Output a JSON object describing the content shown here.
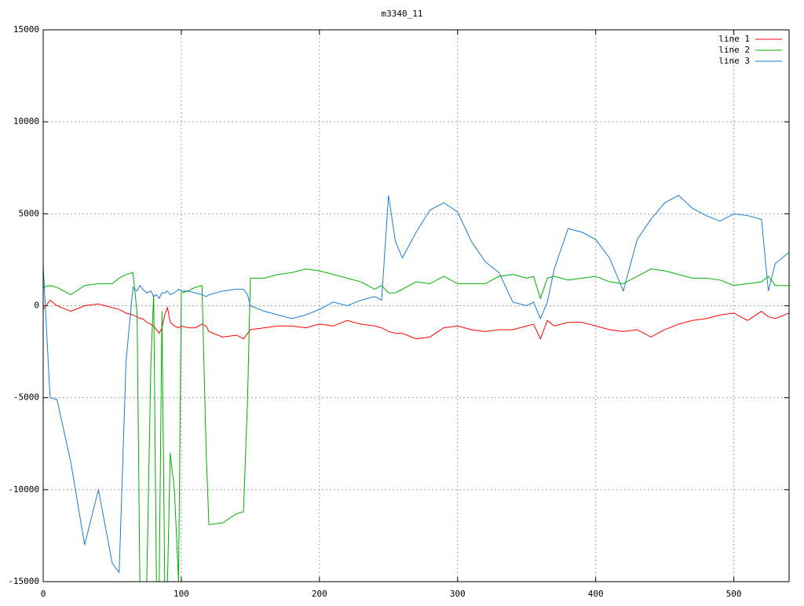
{
  "chart_data": {
    "type": "line",
    "title": "m3340_11",
    "x": [
      0,
      5,
      10,
      20,
      30,
      40,
      50,
      55,
      60,
      65,
      68,
      70,
      72,
      75,
      78,
      80,
      82,
      84,
      86,
      88,
      90,
      92,
      95,
      98,
      100,
      105,
      110,
      115,
      118,
      120,
      130,
      140,
      145,
      148,
      150,
      160,
      170,
      180,
      190,
      200,
      210,
      220,
      230,
      240,
      245,
      250,
      255,
      260,
      270,
      280,
      290,
      300,
      310,
      320,
      330,
      340,
      350,
      355,
      360,
      365,
      370,
      380,
      390,
      400,
      410,
      420,
      430,
      440,
      450,
      460,
      470,
      480,
      490,
      500,
      510,
      520,
      525,
      530,
      540
    ],
    "series": [
      {
        "name": "line 1",
        "color": "#ff0000",
        "values": [
          -200,
          300,
          0,
          -300,
          0,
          100,
          -100,
          -200,
          -400,
          -500,
          -600,
          -700,
          -700,
          -900,
          -1000,
          -1100,
          -1300,
          -1500,
          -1200,
          -500,
          -100,
          -900,
          -1100,
          -1200,
          -1100,
          -1200,
          -1200,
          -1000,
          -1100,
          -1400,
          -1700,
          -1600,
          -1800,
          -1500,
          -1300,
          -1200,
          -1100,
          -1100,
          -1200,
          -1000,
          -1100,
          -800,
          -1000,
          -1100,
          -1200,
          -1400,
          -1500,
          -1500,
          -1800,
          -1700,
          -1200,
          -1100,
          -1300,
          -1400,
          -1300,
          -1300,
          -1100,
          -1000,
          -1800,
          -800,
          -1100,
          -900,
          -900,
          -1100,
          -1300,
          -1400,
          -1300,
          -1700,
          -1300,
          -1000,
          -800,
          -700,
          -500,
          -400,
          -800,
          -300,
          -600,
          -700,
          -400
        ]
      },
      {
        "name": "line 2",
        "color": "#00b000",
        "values": [
          1000,
          1100,
          1000,
          600,
          1100,
          1200,
          1200,
          1500,
          1700,
          1800,
          -400,
          -15000,
          -15000,
          -15000,
          -3000,
          600,
          -15000,
          -15000,
          -300,
          -15000,
          -15000,
          -8000,
          -10000,
          -15000,
          700,
          800,
          1000,
          1100,
          -8000,
          -11900,
          -11800,
          -11300,
          -11200,
          -5000,
          1500,
          1500,
          1700,
          1800,
          2000,
          1900,
          1700,
          1500,
          1300,
          900,
          1100,
          700,
          700,
          900,
          1300,
          1200,
          1600,
          1200,
          1200,
          1200,
          1600,
          1700,
          1500,
          1600,
          400,
          1500,
          1600,
          1400,
          1500,
          1600,
          1300,
          1200,
          1600,
          2000,
          1900,
          1700,
          1500,
          1500,
          1400,
          1100,
          1200,
          1300,
          1600,
          1100,
          1100
        ]
      },
      {
        "name": "line 3",
        "color": "#1c7cd5",
        "values": [
          2200,
          -5000,
          -5100,
          -8500,
          -13000,
          -10000,
          -14000,
          -14500,
          -3000,
          1000,
          800,
          1100,
          900,
          700,
          800,
          500,
          600,
          400,
          700,
          700,
          800,
          600,
          700,
          900,
          800,
          800,
          700,
          600,
          500,
          600,
          800,
          900,
          900,
          600,
          0,
          -300,
          -500,
          -700,
          -500,
          -200,
          200,
          0,
          300,
          500,
          300,
          6000,
          3500,
          2600,
          4000,
          5200,
          5600,
          5100,
          3500,
          2400,
          1800,
          200,
          0,
          200,
          -700,
          200,
          2000,
          4200,
          4000,
          3600,
          2600,
          800,
          3600,
          4700,
          5600,
          6000,
          5300,
          4900,
          4600,
          5000,
          4900,
          4700,
          800,
          2300,
          2900
        ]
      }
    ],
    "xlim": [
      0,
      540
    ],
    "ylim": [
      -15000,
      15000
    ],
    "xticks": [
      0,
      100,
      200,
      300,
      400,
      500
    ],
    "yticks": [
      -15000,
      -10000,
      -5000,
      0,
      5000,
      10000,
      15000
    ],
    "grid": true,
    "legend": "top-right"
  }
}
